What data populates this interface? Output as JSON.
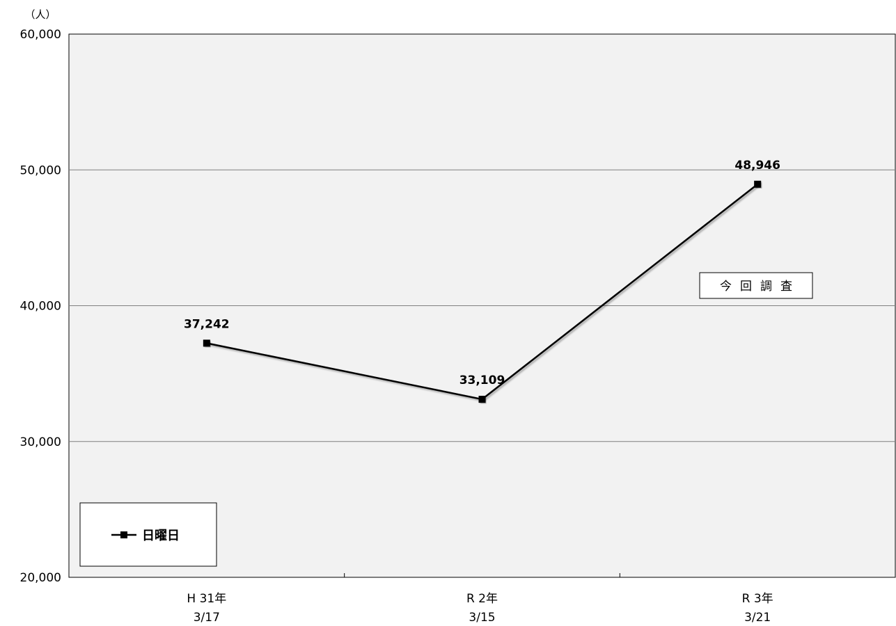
{
  "chart_data": {
    "type": "line",
    "unit_label": "（人）",
    "categories": [
      [
        "H 31年",
        "3/17"
      ],
      [
        "R 2年",
        "3/15"
      ],
      [
        "R 3年",
        "3/21"
      ]
    ],
    "series": [
      {
        "name": "日曜日",
        "values": [
          37242,
          33109,
          48946
        ],
        "data_labels": [
          "37,242",
          "33,109",
          "48,946"
        ],
        "color": "#000000",
        "marker": "square"
      }
    ],
    "ylim": [
      20000,
      60000
    ],
    "yticks": [
      20000,
      30000,
      40000,
      50000,
      60000
    ],
    "ytick_labels": [
      "20,000",
      "30,000",
      "40,000",
      "50,000",
      "60,000"
    ],
    "grid": true,
    "legend_placement": "bottom-left",
    "annotation": "今回調査",
    "plot_background": "#f2f2f2",
    "gridline_color": "#7f7f7f"
  }
}
